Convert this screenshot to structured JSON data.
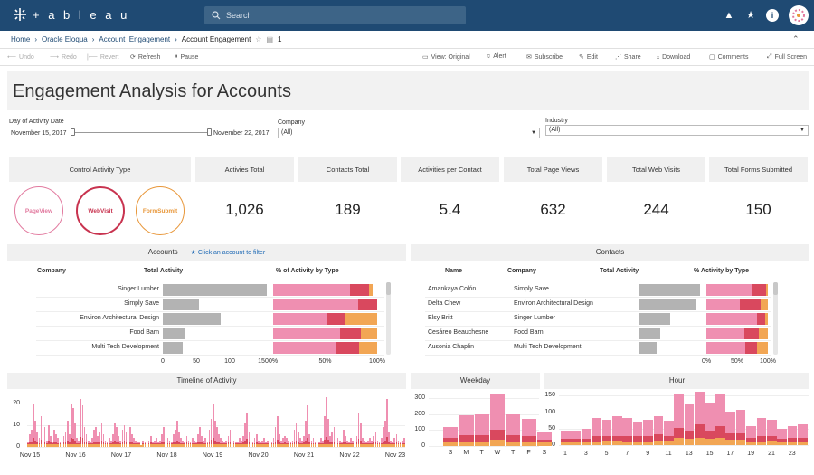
{
  "app": {
    "brand": "+ a b l e a u",
    "search_placeholder": "Search",
    "avatar_initial": ""
  },
  "breadcrumb": {
    "items": [
      "Home",
      "Oracle Eloqua",
      "Account_Engagement"
    ],
    "current": "Account Engagement",
    "revisions": "1"
  },
  "toolbar": {
    "undo": "Undo",
    "redo": "Redo",
    "revert": "Revert",
    "refresh": "Refresh",
    "pause": "Pause",
    "view": "View: Original",
    "alert": "Alert",
    "subscribe": "Subscribe",
    "edit": "Edit",
    "share": "Share",
    "download": "Download",
    "comments": "Comments",
    "fullscreen": "Full Screen"
  },
  "dashboard": {
    "title": "Engagement Analysis for Accounts"
  },
  "filters": {
    "date": {
      "label": "Day of Activity Date",
      "start": "November 15, 2017",
      "end": "November 22, 2017"
    },
    "company": {
      "label": "Company",
      "value": "(All)"
    },
    "industry": {
      "label": "Industry",
      "value": "(All)"
    }
  },
  "control": {
    "label": "Control Activity Type",
    "types": [
      {
        "label": "PageView",
        "color": "#e27a9f"
      },
      {
        "label": "WebVisit",
        "color": "#c8334f"
      },
      {
        "label": "FormSubmit",
        "color": "#e8973a"
      }
    ]
  },
  "kpis": [
    {
      "label": "Activies Total",
      "value": "1,026"
    },
    {
      "label": "Contacts Total",
      "value": "189"
    },
    {
      "label": "Activities per Contact",
      "value": "5.4"
    },
    {
      "label": "Total Page Views",
      "value": "632"
    },
    {
      "label": "Total Web Visits",
      "value": "244"
    },
    {
      "label": "Total Forms Submitted",
      "value": "150"
    }
  ],
  "colors": {
    "pageview": "#ef8fb1",
    "webvisit": "#d9485e",
    "formsubmit": "#f2a654",
    "bar_gray": "#b3b3b3"
  },
  "accounts": {
    "title": "Accounts",
    "hint": "Click an account to filter",
    "headers": {
      "company": "Company",
      "total": "Total Activity",
      "pct": "% of Activity by Type"
    },
    "rows": [
      {
        "company": "Singer Lumber",
        "total": 180,
        "pct": [
          0.74,
          0.18,
          0.04
        ]
      },
      {
        "company": "Simply Save",
        "total": 62,
        "pct": [
          0.82,
          0.18,
          0.0
        ]
      },
      {
        "company": "Environ Architectural Design",
        "total": 100,
        "pct": [
          0.51,
          0.18,
          0.31
        ]
      },
      {
        "company": "Food Barn",
        "total": 38,
        "pct": [
          0.64,
          0.2,
          0.16
        ]
      },
      {
        "company": "Multi Tech Development",
        "total": 34,
        "pct": [
          0.6,
          0.23,
          0.17
        ]
      }
    ],
    "x_ticks": [
      "0",
      "50",
      "100",
      "150"
    ],
    "pct_ticks": [
      "0%",
      "50%",
      "100%"
    ]
  },
  "contacts": {
    "title": "Contacts",
    "headers": {
      "name": "Name",
      "company": "Company",
      "total": "Total Activity",
      "pct": "% Activity by Type"
    },
    "rows": [
      {
        "name": "Amankaya Colón",
        "company": "Simply Save",
        "total": 1.0,
        "pct": [
          0.73,
          0.24,
          0.03
        ]
      },
      {
        "name": "Delta Chew",
        "company": "Environ Architectural Design",
        "total": 0.93,
        "pct": [
          0.55,
          0.33,
          0.12
        ]
      },
      {
        "name": "Elsy Britt",
        "company": "Singer Lumber",
        "total": 0.52,
        "pct": [
          0.82,
          0.14,
          0.04
        ]
      },
      {
        "name": "Cesáreo Beauchesne",
        "company": "Food Barn",
        "total": 0.35,
        "pct": [
          0.62,
          0.23,
          0.15
        ]
      },
      {
        "name": "Ausonia Chaplin",
        "company": "Multi Tech Development",
        "total": 0.3,
        "pct": [
          0.63,
          0.2,
          0.17
        ]
      }
    ],
    "pct_ticks": [
      "0%",
      "50%",
      "100%"
    ]
  },
  "timeline": {
    "title": "Timeline of Activity",
    "y_ticks": [
      "20",
      "10",
      "0"
    ],
    "ylim": [
      0,
      25
    ],
    "x_ticks": [
      "Nov 15",
      "Nov 16",
      "Nov 17",
      "Nov 18",
      "Nov 19",
      "Nov 20",
      "Nov 21",
      "Nov 22",
      "Nov 23"
    ],
    "values": [
      2,
      6,
      8,
      20,
      12,
      7,
      4,
      14,
      13,
      9,
      3,
      10,
      5,
      2,
      8,
      6,
      4,
      2,
      3,
      5,
      7,
      12,
      6,
      20,
      18,
      11,
      4,
      3,
      22,
      19,
      9,
      6,
      3,
      2,
      4,
      8,
      9,
      5,
      7,
      11,
      6,
      3,
      2,
      4,
      3,
      6,
      11,
      9,
      5,
      3,
      8,
      10,
      7,
      15,
      9,
      6,
      4,
      3,
      2,
      2,
      1,
      3,
      2,
      4,
      3,
      5,
      2,
      3,
      4,
      2,
      3,
      6,
      9,
      5,
      4,
      3,
      2,
      6,
      8,
      12,
      7,
      4,
      3,
      2,
      5,
      3,
      2,
      4,
      3,
      2,
      6,
      9,
      5,
      3,
      4,
      2,
      8,
      13,
      20,
      12,
      9,
      6,
      4,
      3,
      2,
      3,
      5,
      8,
      4,
      3,
      2,
      2,
      4,
      3,
      5,
      11,
      16,
      7,
      3,
      2,
      4,
      6,
      3,
      2,
      3,
      4,
      2,
      3,
      5,
      2,
      4,
      9,
      14,
      6,
      3,
      4,
      5,
      4,
      3,
      2,
      3,
      8,
      11,
      7,
      4,
      3,
      5,
      12,
      19,
      6,
      3,
      4,
      2,
      3,
      2,
      4,
      3,
      14,
      23,
      13,
      5,
      7,
      9,
      6,
      4,
      3,
      2,
      8,
      5,
      3,
      2,
      4,
      3,
      2,
      5,
      16,
      11,
      4,
      3,
      2,
      3,
      4,
      3,
      5,
      7,
      3,
      2,
      4,
      9,
      12,
      22,
      7,
      3,
      2,
      4,
      6,
      3,
      2,
      3,
      4
    ]
  },
  "weekday": {
    "title": "Weekday",
    "y_ticks": [
      "300",
      "200",
      "100",
      "0"
    ],
    "ylim": [
      0,
      340
    ],
    "categories": [
      "S",
      "M",
      "T",
      "W",
      "T",
      "F",
      "S"
    ],
    "values": [
      [
        70,
        30,
        20
      ],
      [
        120,
        40,
        30
      ],
      [
        130,
        40,
        30
      ],
      [
        230,
        60,
        40
      ],
      [
        130,
        40,
        30
      ],
      [
        110,
        30,
        30
      ],
      [
        50,
        20,
        20
      ]
    ]
  },
  "hour": {
    "title": "Hour",
    "y_ticks": [
      "150",
      "100",
      "50",
      "0"
    ],
    "ylim": [
      0,
      165
    ],
    "x_ticks": [
      "1",
      "3",
      "5",
      "7",
      "9",
      "11",
      "13",
      "15",
      "17",
      "19",
      "21",
      "23"
    ],
    "values": [
      [
        25,
        10,
        10
      ],
      [
        25,
        8,
        10
      ],
      [
        30,
        10,
        10
      ],
      [
        55,
        15,
        12
      ],
      [
        50,
        15,
        13
      ],
      [
        60,
        15,
        13
      ],
      [
        55,
        15,
        12
      ],
      [
        45,
        15,
        12
      ],
      [
        50,
        15,
        12
      ],
      [
        55,
        18,
        14
      ],
      [
        45,
        15,
        13
      ],
      [
        100,
        30,
        23
      ],
      [
        80,
        25,
        20
      ],
      [
        100,
        40,
        23
      ],
      [
        85,
        25,
        20
      ],
      [
        100,
        35,
        23
      ],
      [
        65,
        20,
        17
      ],
      [
        70,
        20,
        17
      ],
      [
        35,
        12,
        10
      ],
      [
        55,
        15,
        12
      ],
      [
        50,
        15,
        13
      ],
      [
        30,
        10,
        10
      ],
      [
        35,
        10,
        12
      ],
      [
        40,
        12,
        10
      ]
    ]
  }
}
